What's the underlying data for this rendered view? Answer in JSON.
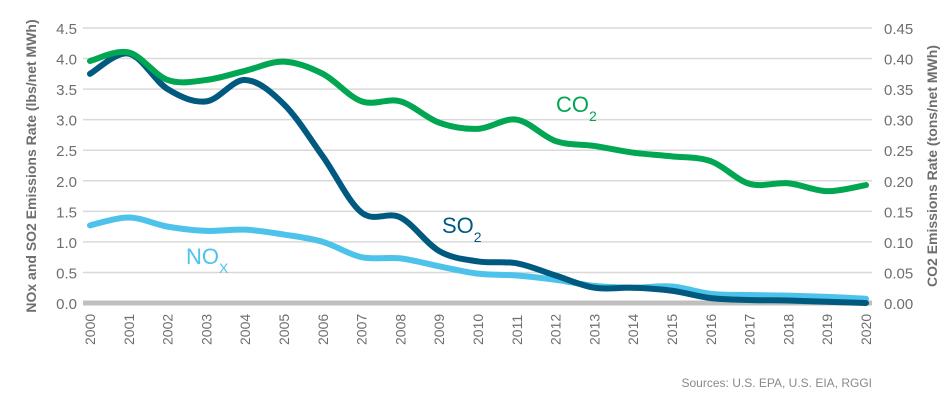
{
  "chart_data": {
    "type": "line",
    "x": [
      2000,
      2001,
      2002,
      2003,
      2004,
      2005,
      2006,
      2007,
      2008,
      2009,
      2010,
      2011,
      2012,
      2013,
      2014,
      2015,
      2016,
      2017,
      2018,
      2019,
      2020
    ],
    "x_tick_labels": [
      "2000",
      "2001",
      "2002",
      "2003",
      "2004",
      "2005",
      "2006",
      "2007",
      "2008",
      "2009",
      "2010",
      "2011",
      "2012",
      "2013",
      "2014",
      "2015",
      "2016",
      "2017",
      "2018",
      "2019",
      "2020"
    ],
    "ylabel_left": "NOx and SO2 Emissions Rate (lbs/net MWh)",
    "ylabel_right": "CO2 Emissions Rate (tons/net MWh)",
    "ylim_left": [
      0,
      4.5
    ],
    "ylim_right": [
      0,
      0.45
    ],
    "y_ticks_left": [
      "0.0",
      "0.5",
      "1.0",
      "1.5",
      "2.0",
      "2.5",
      "3.0",
      "3.5",
      "4.0",
      "4.5"
    ],
    "y_ticks_right": [
      "0.00",
      "0.05",
      "0.10",
      "0.15",
      "0.20",
      "0.25",
      "0.30",
      "0.35",
      "0.40",
      "0.45"
    ],
    "grid": true,
    "series": [
      {
        "name": "CO2",
        "label_main": "CO",
        "label_sub": "2",
        "axis": "right",
        "color": "#00a651",
        "values": [
          0.396,
          0.41,
          0.365,
          0.365,
          0.38,
          0.395,
          0.375,
          0.33,
          0.33,
          0.295,
          0.285,
          0.3,
          0.265,
          0.257,
          0.246,
          0.24,
          0.232,
          0.195,
          0.196,
          0.183,
          0.193
        ]
      },
      {
        "name": "SO2",
        "label_main": "SO",
        "label_sub": "2",
        "axis": "left",
        "color": "#005a80",
        "values": [
          3.75,
          4.08,
          3.5,
          3.3,
          3.65,
          3.25,
          2.4,
          1.48,
          1.4,
          0.85,
          0.68,
          0.65,
          0.45,
          0.25,
          0.25,
          0.2,
          0.08,
          0.05,
          0.04,
          0.02,
          0.0
        ]
      },
      {
        "name": "NOx",
        "label_main": "NO",
        "label_sub": "X",
        "axis": "left",
        "color": "#4dc3eb",
        "values": [
          1.27,
          1.4,
          1.25,
          1.18,
          1.2,
          1.12,
          1.0,
          0.75,
          0.73,
          0.6,
          0.48,
          0.45,
          0.38,
          0.28,
          0.25,
          0.27,
          0.15,
          0.13,
          0.12,
          0.1,
          0.07
        ]
      }
    ],
    "source": "Sources: U.S. EPA, U.S. EIA, RGGI"
  }
}
